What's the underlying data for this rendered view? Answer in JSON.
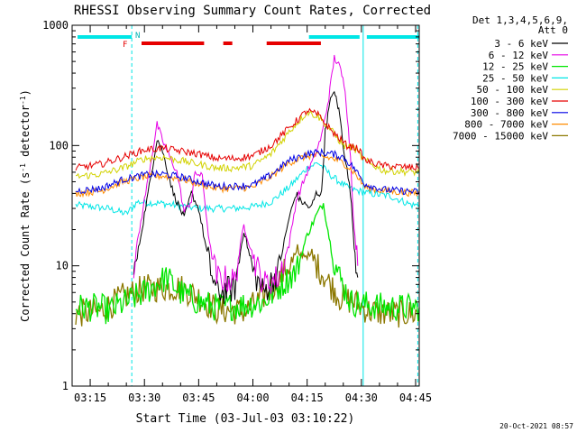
{
  "chart_data": {
    "type": "line",
    "title": "RHESSI Observing Summary Count Rates, Corrected",
    "xlabel": "Start Time (03-Jul-03 03:10:22)",
    "ylabel_parts": [
      "Corrected Count Rate (s",
      "-1",
      " detector",
      "-1",
      ")"
    ],
    "y_scale": "log",
    "ylim": [
      1,
      1000
    ],
    "xlim": [
      190,
      1735
    ],
    "y_ticks": [
      {
        "value": 1,
        "label": "1"
      },
      {
        "value": 10,
        "label": "10"
      },
      {
        "value": 100,
        "label": "100"
      },
      {
        "value": 1000,
        "label": "1000"
      }
    ],
    "x_ticks": [
      {
        "label": "03:15"
      },
      {
        "label": "03:30"
      },
      {
        "label": "03:45"
      },
      {
        "label": "04:00"
      },
      {
        "label": "04:15"
      },
      {
        "label": "04:30"
      },
      {
        "label": "04:45"
      }
    ],
    "x_tick_minutes": [
      195,
      210,
      225,
      240,
      255,
      270,
      285
    ],
    "legend": {
      "header": [
        "Det 1,3,4,5,6,9,",
        "Att 0"
      ],
      "placement": "right",
      "entries": [
        {
          "label": "3 - 6 keV",
          "color": "#000000"
        },
        {
          "label": "6 - 12 keV",
          "color": "#e600e6"
        },
        {
          "label": "12 - 25 keV",
          "color": "#00e600"
        },
        {
          "label": "25 - 50 keV",
          "color": "#00e6e6"
        },
        {
          "label": "50 - 100 keV",
          "color": "#d2d200"
        },
        {
          "label": "100 - 300 keV",
          "color": "#e60000"
        },
        {
          "label": "300 - 800 keV",
          "color": "#0000e6"
        },
        {
          "label": "800 - 7000 keV",
          "color": "#ff8c00"
        },
        {
          "label": "7000 - 15000 keV",
          "color": "#8c7800"
        }
      ]
    },
    "annotations": {
      "F": "F",
      "N": "N",
      "night_bands_minutes": [
        [
          191.5,
          206.5
        ],
        [
          255.5,
          269.5
        ],
        [
          271.5,
          286
        ]
      ],
      "flare_bands_minutes": [
        [
          209.2,
          226.5
        ],
        [
          231.8,
          234.3
        ],
        [
          243.8,
          258.8
        ]
      ],
      "saa_lines_minutes": [
        206.5,
        270.5,
        285.6
      ]
    },
    "series": [
      {
        "color": "#00e6e6",
        "points": [
          [
            191,
            32
          ],
          [
            200,
            30
          ],
          [
            205,
            27
          ],
          [
            208,
            34
          ],
          [
            215,
            33
          ],
          [
            225,
            30
          ],
          [
            235,
            30
          ],
          [
            240,
            31
          ],
          [
            245,
            34
          ],
          [
            250,
            45
          ],
          [
            255,
            65
          ],
          [
            258,
            72
          ],
          [
            262,
            55
          ],
          [
            266,
            45
          ],
          [
            269,
            42
          ],
          [
            272,
            40
          ],
          [
            278,
            38
          ],
          [
            284,
            32
          ],
          [
            286,
            32
          ]
        ]
      },
      {
        "color": "#8c7800",
        "points": [
          [
            191,
            4.0
          ],
          [
            198,
            4.2
          ],
          [
            204,
            5.5
          ],
          [
            210,
            6.5
          ],
          [
            220,
            6.6
          ],
          [
            225,
            5.5
          ],
          [
            230,
            4.3
          ],
          [
            238,
            4.2
          ],
          [
            242,
            5.2
          ],
          [
            246,
            7.0
          ],
          [
            250,
            10
          ],
          [
            253,
            12.5
          ],
          [
            256,
            12
          ],
          [
            260,
            8
          ],
          [
            264,
            5.5
          ],
          [
            268,
            5.0
          ],
          [
            272,
            4.2
          ],
          [
            278,
            4.0
          ],
          [
            286,
            4.0
          ]
        ]
      },
      {
        "color": "#00e600",
        "points": [
          [
            191,
            4.5
          ],
          [
            198,
            4.5
          ],
          [
            200,
            4.2
          ],
          [
            205,
            5
          ],
          [
            210,
            6
          ],
          [
            216,
            8
          ],
          [
            220,
            6
          ],
          [
            225,
            5
          ],
          [
            230,
            4.5
          ],
          [
            237,
            4.7
          ],
          [
            243,
            5
          ],
          [
            248,
            7
          ],
          [
            252,
            9
          ],
          [
            255,
            18
          ],
          [
            258,
            28
          ],
          [
            259.5,
            33
          ],
          [
            262,
            12
          ],
          [
            264,
            8
          ],
          [
            267,
            5
          ],
          [
            272,
            4.7
          ],
          [
            278,
            4.5
          ],
          [
            286,
            4.5
          ]
        ]
      },
      {
        "color": "#000000",
        "points": [
          [
            207,
            8
          ],
          [
            212,
            60
          ],
          [
            213.5,
            115
          ],
          [
            215,
            90
          ],
          [
            218,
            40
          ],
          [
            221,
            25
          ],
          [
            223,
            40
          ],
          [
            225,
            30
          ],
          [
            228,
            10
          ],
          [
            230,
            6
          ],
          [
            235,
            6.5
          ],
          [
            237.5,
            20
          ],
          [
            240,
            9
          ],
          [
            243,
            6
          ],
          [
            247,
            9
          ],
          [
            250,
            25
          ],
          [
            252,
            40
          ],
          [
            253,
            35
          ],
          [
            256,
            30
          ],
          [
            257.5,
            40
          ],
          [
            259,
            40
          ],
          [
            260,
            130
          ],
          [
            261,
            200
          ],
          [
            262,
            280
          ],
          [
            263,
            250
          ],
          [
            264,
            180
          ],
          [
            265,
            100
          ],
          [
            267,
            40
          ],
          [
            268,
            15
          ],
          [
            269,
            8
          ]
        ]
      },
      {
        "color": "#e600e6",
        "points": [
          [
            207,
            10
          ],
          [
            210,
            35
          ],
          [
            212,
            80
          ],
          [
            213.5,
            150
          ],
          [
            215,
            110
          ],
          [
            217,
            80
          ],
          [
            219,
            60
          ],
          [
            221,
            28
          ],
          [
            223,
            35
          ],
          [
            224,
            60
          ],
          [
            226,
            55
          ],
          [
            228,
            15
          ],
          [
            230,
            8
          ],
          [
            235,
            7.5
          ],
          [
            237.5,
            22
          ],
          [
            240,
            12
          ],
          [
            243,
            7
          ],
          [
            247,
            8
          ],
          [
            250,
            15
          ],
          [
            252,
            35
          ],
          [
            255,
            60
          ],
          [
            257,
            80
          ],
          [
            259,
            120
          ],
          [
            261,
            250
          ],
          [
            262.5,
            540
          ],
          [
            264,
            450
          ],
          [
            265.5,
            300
          ],
          [
            267,
            80
          ],
          [
            268,
            20
          ],
          [
            269,
            10
          ]
        ]
      },
      {
        "color": "#ff8c00",
        "points": [
          [
            191,
            40
          ],
          [
            198,
            42
          ],
          [
            204,
            50
          ],
          [
            210,
            55
          ],
          [
            215,
            56
          ],
          [
            220,
            53
          ],
          [
            225,
            48
          ],
          [
            230,
            44
          ],
          [
            235,
            44
          ],
          [
            240,
            45
          ],
          [
            245,
            55
          ],
          [
            250,
            72
          ],
          [
            255,
            82
          ],
          [
            258,
            82
          ],
          [
            262,
            78
          ],
          [
            265,
            72
          ],
          [
            268,
            60
          ],
          [
            271,
            45
          ],
          [
            276,
            42
          ],
          [
            286,
            40
          ]
        ]
      },
      {
        "color": "#0000e6",
        "points": [
          [
            191,
            42
          ],
          [
            198,
            44
          ],
          [
            204,
            52
          ],
          [
            210,
            57
          ],
          [
            215,
            58
          ],
          [
            220,
            55
          ],
          [
            225,
            50
          ],
          [
            230,
            46
          ],
          [
            235,
            46
          ],
          [
            240,
            47
          ],
          [
            245,
            57
          ],
          [
            250,
            75
          ],
          [
            255,
            85
          ],
          [
            258,
            88
          ],
          [
            262,
            85
          ],
          [
            265,
            80
          ],
          [
            268,
            65
          ],
          [
            271,
            48
          ],
          [
            276,
            43
          ],
          [
            286,
            41
          ]
        ]
      },
      {
        "color": "#d2d200",
        "points": [
          [
            191,
            55
          ],
          [
            198,
            58
          ],
          [
            204,
            65
          ],
          [
            210,
            78
          ],
          [
            215,
            80
          ],
          [
            220,
            75
          ],
          [
            225,
            70
          ],
          [
            230,
            65
          ],
          [
            235,
            65
          ],
          [
            240,
            68
          ],
          [
            245,
            85
          ],
          [
            250,
            130
          ],
          [
            255,
            190
          ],
          [
            258,
            175
          ],
          [
            262,
            130
          ],
          [
            265,
            100
          ],
          [
            268,
            95
          ],
          [
            271,
            75
          ],
          [
            276,
            62
          ],
          [
            286,
            60
          ]
        ]
      },
      {
        "color": "#e60000",
        "points": [
          [
            191,
            65
          ],
          [
            198,
            70
          ],
          [
            204,
            80
          ],
          [
            210,
            92
          ],
          [
            215,
            95
          ],
          [
            220,
            90
          ],
          [
            225,
            85
          ],
          [
            230,
            78
          ],
          [
            235,
            78
          ],
          [
            240,
            82
          ],
          [
            245,
            100
          ],
          [
            250,
            140
          ],
          [
            255,
            195
          ],
          [
            258,
            180
          ],
          [
            262,
            130
          ],
          [
            266,
            100
          ],
          [
            269,
            95
          ],
          [
            271,
            75
          ],
          [
            276,
            68
          ],
          [
            286,
            65
          ]
        ]
      }
    ]
  },
  "footer_date": "20-Oct-2021 08:57"
}
